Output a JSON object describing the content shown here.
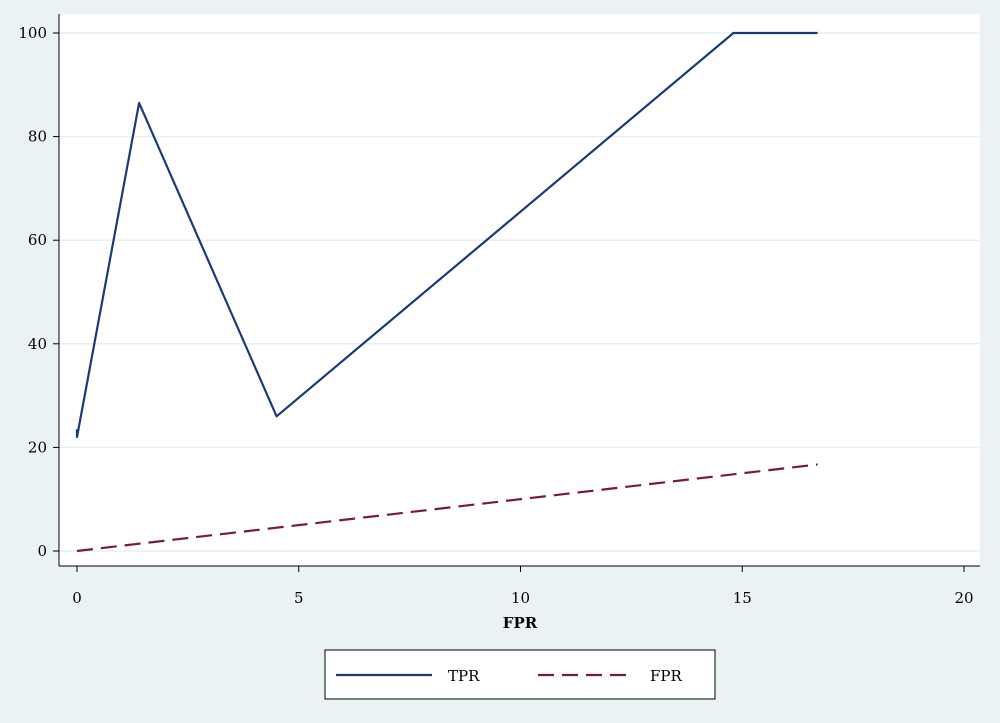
{
  "chart_data": {
    "type": "line",
    "title": "",
    "xlabel": "FPR",
    "ylabel": "",
    "xlim": [
      0,
      20
    ],
    "ylim": [
      0,
      100
    ],
    "x_ticks": [
      "0",
      "5",
      "10",
      "15",
      "20"
    ],
    "y_ticks": [
      "0",
      "20",
      "40",
      "60",
      "80",
      "100"
    ],
    "grid": "horizontal",
    "legend_position": "bottom",
    "series": [
      {
        "name": "TPR",
        "color": "#1a3a7a",
        "style": "solid",
        "points": [
          [
            0,
            23.5
          ],
          [
            0,
            22
          ],
          [
            1.4,
            86.5
          ],
          [
            4.5,
            26
          ],
          [
            14.8,
            100
          ],
          [
            16.7,
            100
          ]
        ]
      },
      {
        "name": "FPR",
        "color": "#7a1a3a",
        "style": "dashed",
        "points": [
          [
            0,
            0
          ],
          [
            1.4,
            1.4
          ],
          [
            4.5,
            4.5
          ],
          [
            14.8,
            14.8
          ],
          [
            16.7,
            16.7
          ]
        ]
      }
    ]
  }
}
